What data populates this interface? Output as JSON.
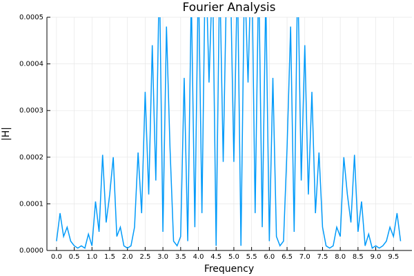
{
  "chart_data": {
    "type": "line",
    "title": "Fourier Analysis",
    "x_label": "Frequency",
    "y_label": "|H|",
    "xlim": [
      -0.27,
      10.02
    ],
    "ylim": [
      0,
      0.0005
    ],
    "grid": true,
    "xticks": [
      {
        "value": 0,
        "label": "0.0"
      },
      0.5,
      {
        "value": 1,
        "label": "1.0"
      },
      1.5,
      {
        "value": 2,
        "label": "2.0"
      },
      2.5,
      {
        "value": 3,
        "label": "3.0"
      },
      3.5,
      {
        "value": 4,
        "label": "4.0"
      },
      4.5,
      {
        "value": 5,
        "label": "5.0"
      },
      5.5,
      {
        "value": 6,
        "label": "6.0"
      },
      6.5,
      {
        "value": 7,
        "label": "7.0"
      },
      7.5,
      {
        "value": 8,
        "label": "8.0"
      },
      8.5,
      {
        "value": 9,
        "label": "9.0"
      },
      9.5
    ],
    "yticks": [
      {
        "value": 0,
        "label": "0.0000"
      },
      {
        "value": 0.0001,
        "label": "0.0001"
      },
      {
        "value": 0.0002,
        "label": "0.0002"
      },
      {
        "value": 0.0003,
        "label": "0.0003"
      },
      {
        "value": 0.0004,
        "label": "0.0004"
      },
      {
        "value": 0.0005,
        "label": "0.0005"
      }
    ],
    "x": [
      0,
      0.1,
      0.2,
      0.3,
      0.4,
      0.5,
      0.6,
      0.7,
      0.8,
      0.9,
      1.0,
      1.1,
      1.2,
      1.3,
      1.4,
      1.5,
      1.6,
      1.7,
      1.8,
      1.9,
      2.0,
      2.1,
      2.2,
      2.3,
      2.4,
      2.5,
      2.6,
      2.7,
      2.8,
      2.9,
      3.0,
      3.1,
      3.2,
      3.3,
      3.4,
      3.5,
      3.6,
      3.7,
      3.8,
      3.9,
      4.0,
      4.1,
      4.2,
      4.3,
      4.4,
      4.5,
      4.6,
      4.7,
      4.8,
      4.9,
      5.0,
      5.1,
      5.2,
      5.3,
      5.4,
      5.5,
      5.6,
      5.7,
      5.8,
      5.9,
      6.0,
      6.1,
      6.2,
      6.3,
      6.4,
      6.5,
      6.6,
      6.7,
      6.8,
      6.9,
      7.0,
      7.1,
      7.2,
      7.3,
      7.4,
      7.5,
      7.6,
      7.7,
      7.8,
      7.9,
      8.0,
      8.1,
      8.2,
      8.3,
      8.4,
      8.5,
      8.6,
      8.7,
      8.8,
      8.9,
      9.0,
      9.1,
      9.2,
      9.3,
      9.4,
      9.5,
      9.6,
      9.7
    ],
    "series": [
      {
        "color": "#009af9",
        "values": [
          2e-05,
          8e-05,
          3e-05,
          5e-05,
          2e-05,
          1e-05,
          5e-06,
          1e-05,
          5e-06,
          3.5e-05,
          1e-05,
          0.000105,
          4e-05,
          0.000205,
          6e-05,
          0.00012,
          0.0002,
          3e-05,
          5e-05,
          1e-05,
          5e-06,
          1e-05,
          5e-05,
          0.00021,
          8e-05,
          0.00034,
          0.00012,
          0.00044,
          0.00015,
          0.0006,
          4e-05,
          0.00048,
          0.00022,
          2e-05,
          1e-05,
          3e-05,
          0.00037,
          2e-05,
          0.00055,
          5e-05,
          0.0006,
          8e-05,
          0.00065,
          0.00036,
          0.0006,
          1e-05,
          0.0006,
          0.00019,
          0.0006,
          0.0006,
          0.00019,
          0.0006,
          1e-05,
          0.0006,
          0.00036,
          0.00065,
          8e-05,
          0.0006,
          5e-05,
          0.00055,
          2e-05,
          0.00037,
          3e-05,
          1e-05,
          2e-05,
          0.00022,
          0.00048,
          4e-05,
          0.0006,
          0.00015,
          0.00044,
          0.00012,
          0.00034,
          8e-05,
          0.00021,
          5e-05,
          1e-05,
          5e-06,
          1e-05,
          5e-05,
          3e-05,
          0.0002,
          0.00012,
          6e-05,
          0.000205,
          4e-05,
          0.000105,
          1e-05,
          3.5e-05,
          5e-06,
          1e-05,
          5e-06,
          1e-05,
          2e-05,
          5e-05,
          3e-05,
          8e-05,
          2e-05
        ]
      }
    ]
  }
}
